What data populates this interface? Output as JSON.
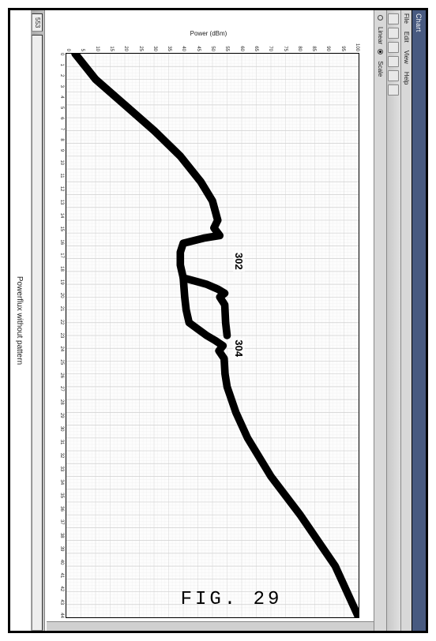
{
  "window": {
    "title_text": "Chart",
    "menu_items": [
      "File",
      "Edit",
      "View",
      "Help"
    ],
    "mode": {
      "label_a": "Linear",
      "label_b": "Scale",
      "selected": "b"
    }
  },
  "chart": {
    "type": "line",
    "title": "",
    "ylabel": "Power (dBm)",
    "background_color": "#fdfdfd",
    "grid_color": "#d0d0d0",
    "grid_minor_color": "#ececec",
    "line_color": "#000000",
    "line_width": 1.6,
    "xlim": [
      0,
      44
    ],
    "ylim": [
      0,
      100
    ],
    "xtick_step": 1,
    "ytick_step": 5,
    "minor_per_major_x": 4,
    "minor_per_major_y": 4,
    "series": [
      {
        "name": "302",
        "label": "302",
        "label_xy": [
          16.2,
          57
        ],
        "color": "#000000",
        "points": [
          [
            0,
            3
          ],
          [
            2,
            10
          ],
          [
            4,
            20
          ],
          [
            6,
            30
          ],
          [
            8,
            39
          ],
          [
            10,
            46
          ],
          [
            11.5,
            50
          ],
          [
            13,
            51.8
          ],
          [
            13.6,
            50.5
          ],
          [
            14.2,
            52.5
          ],
          [
            14.4,
            47
          ],
          [
            14.8,
            40
          ],
          [
            15.5,
            39
          ],
          [
            16.5,
            39
          ],
          [
            17.5,
            40
          ],
          [
            18,
            48
          ],
          [
            18.4,
            52
          ],
          [
            18.7,
            54.2
          ],
          [
            19,
            52.5
          ],
          [
            19.6,
            54.2
          ],
          [
            21,
            54.5
          ],
          [
            22,
            55
          ]
        ]
      },
      {
        "name": "304",
        "label": "304",
        "label_xy": [
          23.0,
          57
        ],
        "color": "#000000",
        "points": [
          [
            17.5,
            40
          ],
          [
            19,
            40.5
          ],
          [
            20,
            41
          ],
          [
            21,
            42
          ],
          [
            22,
            48
          ],
          [
            22.4,
            51
          ],
          [
            22.8,
            53.6
          ],
          [
            23.2,
            52.2
          ],
          [
            23.8,
            54
          ],
          [
            25,
            54.3
          ],
          [
            26,
            55
          ],
          [
            28,
            58
          ],
          [
            30,
            62
          ],
          [
            33,
            70
          ],
          [
            36,
            80
          ],
          [
            40,
            92
          ],
          [
            44,
            100
          ]
        ]
      },
      {
        "name": "left-segment",
        "label": "",
        "color": "#000000",
        "points": [
          [
            0,
            3
          ],
          [
            2,
            10
          ],
          [
            4,
            20
          ],
          [
            6,
            30
          ],
          [
            8,
            39
          ],
          [
            10,
            46
          ],
          [
            11.5,
            50
          ],
          [
            13,
            51.8
          ]
        ]
      }
    ]
  },
  "annotations": {
    "status_value": "553",
    "status_caption": "Powerflux without pattern",
    "figure_caption": "FIG. 29"
  },
  "dims": {
    "outer_w": 552,
    "outer_h": 812
  }
}
